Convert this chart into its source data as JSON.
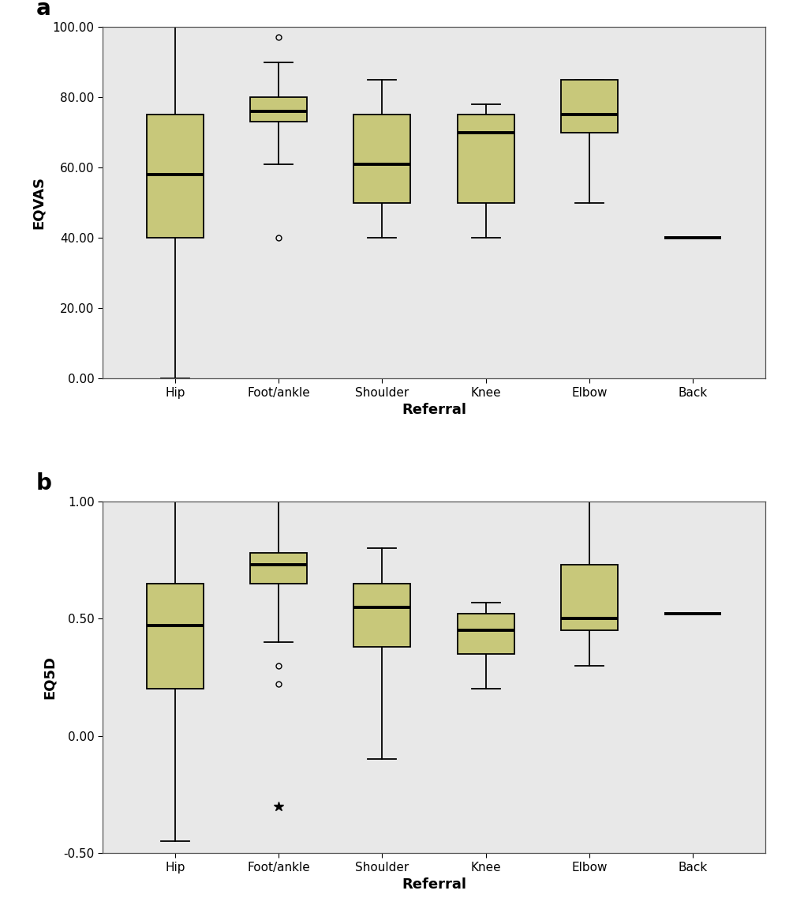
{
  "categories": [
    "Hip",
    "Foot/ankle",
    "Shoulder",
    "Knee",
    "Elbow",
    "Back"
  ],
  "plot_a": {
    "ylabel": "EQVAS",
    "ylim": [
      0,
      100
    ],
    "yticks": [
      0,
      20,
      40,
      60,
      80,
      100
    ],
    "yticklabels": [
      "0.00",
      "20.00",
      "40.00",
      "60.00",
      "80.00",
      "100.00"
    ],
    "boxes": [
      {
        "q1": 40,
        "median": 58,
        "q3": 75,
        "whislo": 0,
        "whishi": 100,
        "fliers": [],
        "n": 1
      },
      {
        "q1": 73,
        "median": 76,
        "q3": 80,
        "whislo": 61,
        "whishi": 90,
        "fliers_circle": [
          97,
          40
        ],
        "n": 1
      },
      {
        "q1": 50,
        "median": 61,
        "q3": 75,
        "whislo": 40,
        "whishi": 85,
        "fliers": [],
        "n": 1
      },
      {
        "q1": 50,
        "median": 70,
        "q3": 75,
        "whislo": 40,
        "whishi": 78,
        "fliers": [],
        "n": 1
      },
      {
        "q1": 70,
        "median": 75,
        "q3": 85,
        "whislo": 50,
        "whishi": 85,
        "fliers": [],
        "n": 1
      },
      {
        "q1": null,
        "median": 40,
        "q3": null,
        "whislo": null,
        "whishi": null,
        "fliers": [],
        "n": 0
      }
    ]
  },
  "plot_b": {
    "ylabel": "EQ5D",
    "ylim": [
      -0.5,
      1.0
    ],
    "yticks": [
      -0.5,
      0.0,
      0.5,
      1.0
    ],
    "yticklabels": [
      "-0.50",
      "0.00",
      "0.50",
      "1.00"
    ],
    "boxes": [
      {
        "q1": 0.2,
        "median": 0.47,
        "q3": 0.65,
        "whislo": -0.45,
        "whishi": 1.0,
        "fliers": [],
        "n": 1
      },
      {
        "q1": 0.65,
        "median": 0.73,
        "q3": 0.78,
        "whislo": 0.4,
        "whishi": 1.0,
        "fliers_circle": [
          0.3,
          0.22
        ],
        "fliers_star": [
          -0.3
        ],
        "n": 1
      },
      {
        "q1": 0.38,
        "median": 0.55,
        "q3": 0.65,
        "whislo": -0.1,
        "whishi": 0.8,
        "fliers": [],
        "n": 1
      },
      {
        "q1": 0.35,
        "median": 0.45,
        "q3": 0.52,
        "whislo": 0.2,
        "whishi": 0.57,
        "fliers": [],
        "n": 1
      },
      {
        "q1": 0.45,
        "median": 0.5,
        "q3": 0.73,
        "whislo": 0.3,
        "whishi": 1.0,
        "fliers": [],
        "n": 1
      },
      {
        "q1": null,
        "median": 0.52,
        "q3": null,
        "whislo": null,
        "whishi": null,
        "fliers": [],
        "n": 0
      }
    ]
  },
  "box_color": "#C8C87A",
  "box_edge_color": "#000000",
  "median_color": "#000000",
  "whisker_color": "#000000",
  "flier_color": "#000000",
  "background_color": "#E8E8E8",
  "figure_bg": "#FFFFFF",
  "xlabel": "Referral",
  "label_a": "a",
  "label_b": "b",
  "box_width": 0.55,
  "tick_fontsize": 11,
  "label_fontsize": 13,
  "panel_label_fontsize": 20
}
